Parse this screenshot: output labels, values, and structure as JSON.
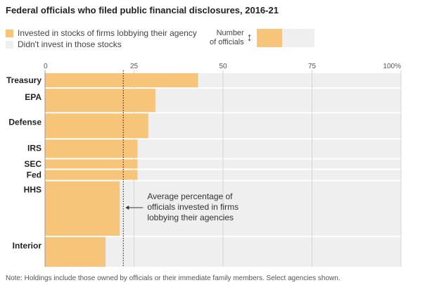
{
  "title": "Federal officials who filed public financial disclosures, 2016-21",
  "legend": {
    "invested_label": "Invested in stocks of firms lobbying their agency",
    "not_invested_label": "Didn't invest in those stocks",
    "size_key_label_1": "Number",
    "size_key_label_2": "of officials",
    "size_key_arrow": "↕"
  },
  "colors": {
    "invested": "#f6c57a",
    "not_invested": "#efefef",
    "gridline": "#d5d5d5",
    "text": "#222222"
  },
  "annotation": {
    "lines": [
      "Average percentage of",
      "officials invested in firms",
      "lobbying their agencies"
    ],
    "value": 22
  },
  "note": "Note: Holdings include those owned by officials or their immediate family members. Select agencies shown.",
  "chart_data": {
    "type": "bar",
    "orientation": "horizontal",
    "variable_height": true,
    "title": "Federal officials who filed public financial disclosures, 2016-21",
    "xlim": [
      0,
      100
    ],
    "xticks": [
      "0",
      "25",
      "50",
      "75",
      "100%"
    ],
    "xtick_values": [
      0,
      25,
      50,
      75,
      100
    ],
    "grid": true,
    "categories": [
      "Treasury",
      "EPA",
      "Defense",
      "IRS",
      "SEC",
      "Fed",
      "HHS",
      "Interior"
    ],
    "series": [
      {
        "name": "Invested in stocks of firms lobbying their agency",
        "values": [
          43,
          31,
          29,
          26,
          26,
          26,
          21,
          17
        ]
      }
    ],
    "relative_officials": [
      20,
      33,
      35,
      26,
      13,
      14,
      77,
      42
    ],
    "average_percentage": 22
  }
}
